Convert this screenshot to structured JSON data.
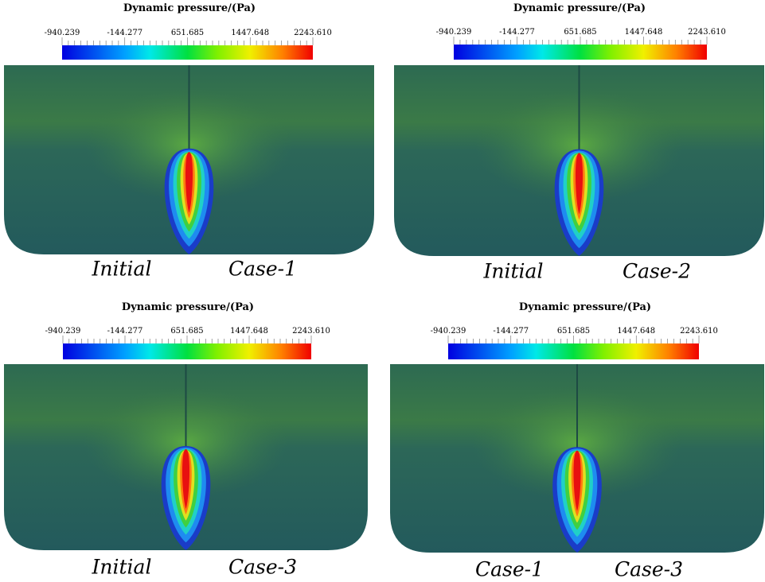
{
  "panels": [
    {
      "colorbar": {
        "title": "Dynamic pressure/(Pa)",
        "ticks": [
          "-940.239",
          "-144.277",
          "651.685",
          "1447.648",
          "2243.610"
        ]
      },
      "left_label": "Initial",
      "right_label": "Case-1"
    },
    {
      "colorbar": {
        "title": "Dynamic pressure/(Pa)",
        "ticks": [
          "-940.239",
          "-144.277",
          "651.685",
          "1447.648",
          "2243.610"
        ]
      },
      "left_label": "Initial",
      "right_label": "Case-2"
    },
    {
      "colorbar": {
        "title": "Dynamic pressure/(Pa)",
        "ticks": [
          "-940.239",
          "-144.277",
          "651.685",
          "1447.648",
          "2243.610"
        ]
      },
      "left_label": "Initial",
      "right_label": "Case-3"
    },
    {
      "colorbar": {
        "title": "Dynamic pressure/(Pa)",
        "ticks": [
          "-940.239",
          "-144.277",
          "651.685",
          "1447.648",
          "2243.610"
        ]
      },
      "left_label": "Case-1",
      "right_label": "Case-3"
    }
  ]
}
